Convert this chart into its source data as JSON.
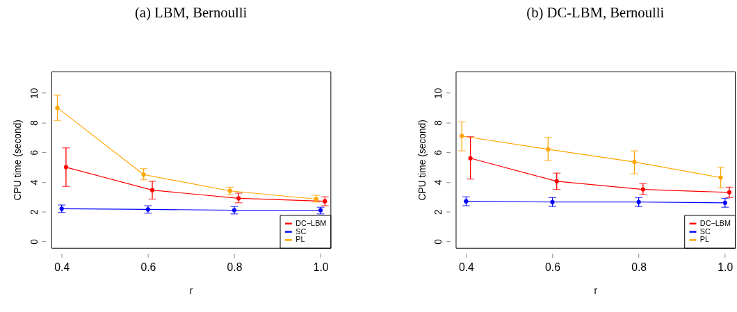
{
  "chart_data": [
    {
      "type": "line",
      "title": "(a) LBM, Bernoulli",
      "xlabel": "r",
      "ylabel": "CPU time (second)",
      "xlim": [
        0.376,
        1.023
      ],
      "ylim": [
        -0.44,
        11.45
      ],
      "xticks": [
        0.4,
        0.6,
        0.8,
        {
          "value": 1,
          "label": "1.0"
        }
      ],
      "yticks": [
        0,
        2,
        4,
        6,
        8,
        10
      ],
      "legend": "bottom right",
      "marker": "circle",
      "grid": false,
      "line_style": "solid",
      "series": [
        {
          "name": "DC−LBM",
          "color": "#ff0000",
          "x": [
            0.41,
            0.61,
            0.81,
            1.01
          ],
          "values": [
            5.0,
            3.45,
            2.9,
            2.7
          ],
          "errors": [
            [
              3.7,
              6.3
            ],
            [
              2.85,
              4.05
            ],
            [
              2.6,
              3.25
            ],
            [
              2.4,
              3.0
            ]
          ]
        },
        {
          "name": "SC",
          "color": "#0000ff",
          "x": [
            0.4,
            0.6,
            0.8,
            1.0
          ],
          "values": [
            2.2,
            2.15,
            2.1,
            2.1
          ],
          "errors": [
            [
              1.95,
              2.45
            ],
            [
              1.9,
              2.4
            ],
            [
              1.85,
              2.35
            ],
            [
              1.85,
              2.3
            ]
          ]
        },
        {
          "name": "PL",
          "color": "#ffa500",
          "x": [
            0.39,
            0.59,
            0.79,
            0.99
          ],
          "values": [
            9.0,
            4.5,
            3.4,
            2.85
          ],
          "errors": [
            [
              8.15,
              9.85
            ],
            [
              4.15,
              4.9
            ],
            [
              3.15,
              3.65
            ],
            [
              2.65,
              3.1
            ]
          ]
        }
      ]
    },
    {
      "type": "line",
      "title": "(b) DC-LBM, Bernoulli",
      "xlabel": "r",
      "ylabel": "CPU time (second)",
      "xlim": [
        0.376,
        1.023
      ],
      "ylim": [
        -0.44,
        11.45
      ],
      "xticks": [
        0.4,
        0.6,
        0.8,
        {
          "value": 1,
          "label": "1.0"
        }
      ],
      "yticks": [
        0,
        2,
        4,
        6,
        8,
        10
      ],
      "legend": "bottom right",
      "marker": "circle",
      "grid": false,
      "line_style": "solid",
      "series": [
        {
          "name": "DC−LBM",
          "color": "#ff0000",
          "x": [
            0.41,
            0.61,
            0.81,
            1.01
          ],
          "values": [
            5.6,
            4.05,
            3.5,
            3.3
          ],
          "errors": [
            [
              4.2,
              7.05
            ],
            [
              3.5,
              4.6
            ],
            [
              3.15,
              3.9
            ],
            [
              2.95,
              3.65
            ]
          ]
        },
        {
          "name": "SC",
          "color": "#0000ff",
          "x": [
            0.4,
            0.6,
            0.8,
            1.0
          ],
          "values": [
            2.7,
            2.65,
            2.65,
            2.6
          ],
          "errors": [
            [
              2.4,
              3.0
            ],
            [
              2.35,
              2.95
            ],
            [
              2.35,
              2.95
            ],
            [
              2.3,
              2.9
            ]
          ]
        },
        {
          "name": "PL",
          "color": "#ffa500",
          "x": [
            0.39,
            0.59,
            0.79,
            0.99
          ],
          "values": [
            7.1,
            6.2,
            5.35,
            4.3
          ],
          "errors": [
            [
              6.1,
              8.05
            ],
            [
              5.45,
              7.0
            ],
            [
              4.55,
              6.1
            ],
            [
              3.6,
              5.0
            ]
          ]
        }
      ]
    }
  ]
}
